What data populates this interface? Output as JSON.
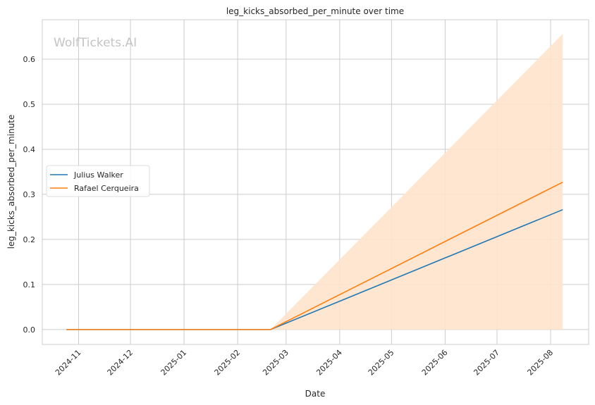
{
  "chart_data": {
    "type": "line",
    "title": "leg_kicks_absorbed_per_minute over time",
    "xlabel": "Date",
    "ylabel": "leg_kicks_absorbed_per_minute",
    "watermark": "WolfTickets.AI",
    "xlim": [
      "2024-10-11",
      "2025-08-23"
    ],
    "ylim": [
      -0.033,
      0.6875
    ],
    "grid": true,
    "legend_placement": "center-left",
    "x_ticks": [
      "2024-11",
      "2024-12",
      "2025-01",
      "2025-02",
      "2025-03",
      "2025-04",
      "2025-05",
      "2025-06",
      "2025-07",
      "2025-08"
    ],
    "y_ticks": [
      0.0,
      0.1,
      0.2,
      0.3,
      0.4,
      0.5,
      0.6
    ],
    "series": [
      {
        "name": "Julius Walker",
        "color": "#1f77b4",
        "x": [
          "2024-10-25",
          "2025-02-20",
          "2025-08-08"
        ],
        "y": [
          0.0,
          0.0,
          0.266
        ]
      },
      {
        "name": "Rafael Cerqueira",
        "color": "#ff7f0e",
        "x": [
          "2024-10-25",
          "2025-02-20",
          "2025-08-08"
        ],
        "y": [
          0.0,
          0.0,
          0.327
        ],
        "band": {
          "color": "#ffe3cc",
          "x": [
            "2025-02-20",
            "2025-08-08"
          ],
          "lower": [
            0.0,
            0.0
          ],
          "upper": [
            0.0,
            0.656
          ]
        }
      }
    ]
  }
}
